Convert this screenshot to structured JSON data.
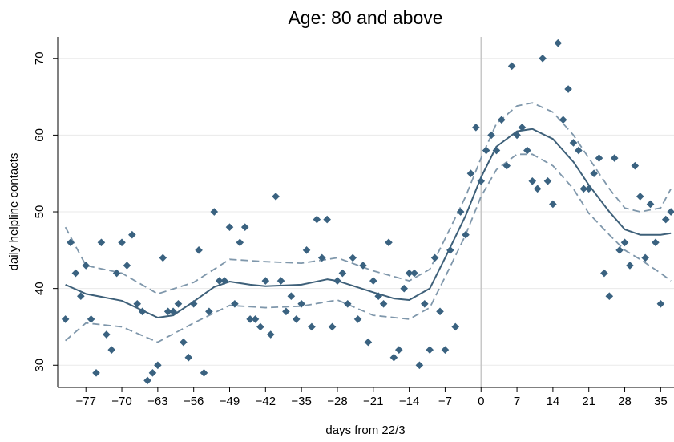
{
  "chart_data": {
    "type": "scatter",
    "title": "Age: 80 and above",
    "x_label": "days from 22/3",
    "y_label": "daily helpline contacts",
    "xlim": [
      -82.5,
      37.6
    ],
    "ylim": [
      27.1,
      72.8
    ],
    "xticks": [
      {
        "value": -77,
        "label": "−77"
      },
      {
        "value": -70,
        "label": "−70"
      },
      {
        "value": -63,
        "label": "−63"
      },
      {
        "value": -56,
        "label": "−56"
      },
      {
        "value": -49,
        "label": "−49"
      },
      {
        "value": -42,
        "label": "−42"
      },
      {
        "value": -35,
        "label": "−35"
      },
      {
        "value": -28,
        "label": "−28"
      },
      {
        "value": -21,
        "label": "−21"
      },
      {
        "value": -14,
        "label": "−14"
      },
      {
        "value": -7,
        "label": "−7"
      },
      0,
      7,
      14,
      21,
      28,
      35
    ],
    "yticks": [
      30,
      40,
      50,
      60,
      70
    ],
    "grid": true,
    "vline": 0,
    "series": [
      {
        "mode": "markers",
        "color": "#3a6280",
        "x": [
          -81,
          -80,
          -79,
          -78,
          -77,
          -76,
          -75,
          -74,
          -73,
          -72,
          -71,
          -70,
          -69,
          -68,
          -67,
          -66,
          -65,
          -64,
          -63,
          -62,
          -61,
          -60,
          -59,
          -58,
          -57,
          -56,
          -55,
          -54,
          -53,
          -52,
          -51,
          -50,
          -49,
          -48,
          -47,
          -46,
          -45,
          -44,
          -43,
          -42,
          -41,
          -40,
          -39,
          -38,
          -37,
          -36,
          -35,
          -34,
          -33,
          -32,
          -31,
          -30,
          -29,
          -28,
          -27,
          -26,
          -25,
          -24,
          -23,
          -22,
          -21,
          -20,
          -19,
          -18,
          -17,
          -16,
          -15,
          -14,
          -13,
          -12,
          -11,
          -10,
          -9,
          -8,
          -7,
          -6,
          -5,
          -4,
          -3,
          -2,
          -1,
          0,
          1,
          2,
          3,
          4,
          5,
          6,
          7,
          8,
          9,
          10,
          11,
          12,
          13,
          14,
          15,
          16,
          17,
          18,
          19,
          20,
          21,
          22,
          23,
          24,
          25,
          26,
          27,
          28,
          29,
          30,
          31,
          32,
          33,
          34,
          35,
          36,
          37
        ],
        "values": [
          36,
          46,
          42,
          39,
          43,
          36,
          29,
          46,
          34,
          32,
          42,
          46,
          43,
          47,
          38,
          37,
          28,
          29,
          30,
          44,
          37,
          37,
          38,
          33,
          31,
          38,
          45,
          29,
          37,
          50,
          41,
          41,
          48,
          38,
          46,
          48,
          36,
          36,
          35,
          41,
          34,
          52,
          41,
          37,
          39,
          36,
          38,
          45,
          35,
          49,
          44,
          49,
          35,
          41,
          42,
          38,
          44,
          36,
          43,
          33,
          41,
          39,
          38,
          46,
          31,
          32,
          40,
          42,
          42,
          30,
          38,
          32,
          44,
          37,
          32,
          45,
          35,
          50,
          47,
          55,
          61,
          54,
          58,
          60,
          58,
          62,
          56,
          69,
          60,
          61,
          58,
          54,
          53,
          70,
          54,
          51,
          72,
          62,
          66,
          59,
          58,
          53,
          53,
          55,
          57,
          42,
          39,
          57,
          45,
          46,
          43,
          56,
          52,
          44,
          51,
          46,
          38,
          49,
          50
        ]
      },
      {
        "mode": "line",
        "color": "#3e6079",
        "x": [
          -81,
          -77,
          -70,
          -63,
          -60,
          -56,
          -52,
          -49,
          -45,
          -42,
          -35,
          -30,
          -28,
          -21,
          -17,
          -14,
          -10,
          -7,
          -3,
          0,
          3,
          7,
          10,
          14,
          18,
          21,
          25,
          28,
          31,
          35,
          37
        ],
        "values": [
          40.5,
          39.3,
          38.4,
          36.2,
          36.5,
          38.3,
          40.2,
          40.9,
          40.5,
          40.3,
          40.5,
          41.2,
          41,
          39.5,
          38.7,
          38.5,
          40,
          44,
          49.5,
          54.5,
          58.5,
          60.5,
          60.8,
          59.5,
          56.5,
          53.5,
          50,
          47.7,
          47,
          47,
          47.2
        ]
      },
      {
        "mode": "dashed",
        "color": "#7f97ab",
        "x": [
          -81,
          -77,
          -70,
          -63,
          -56,
          -49,
          -42,
          -35,
          -28,
          -21,
          -14,
          -10,
          -7,
          -3,
          0,
          3,
          7,
          10,
          14,
          18,
          21,
          25,
          28,
          31,
          35,
          37
        ],
        "values": [
          48,
          43,
          42,
          39.3,
          40.8,
          43.8,
          43.5,
          43.3,
          44,
          42.3,
          41,
          42.5,
          46.5,
          52,
          57,
          61.5,
          63.8,
          64.2,
          63,
          60,
          57,
          53,
          50.5,
          50,
          50.5,
          53
        ]
      },
      {
        "mode": "dashed",
        "color": "#7f97ab",
        "x": [
          -81,
          -77,
          -70,
          -63,
          -56,
          -49,
          -42,
          -35,
          -28,
          -21,
          -14,
          -10,
          -7,
          -3,
          0,
          3,
          7,
          10,
          14,
          18,
          21,
          25,
          28,
          31,
          35,
          37
        ],
        "values": [
          33.2,
          35.5,
          35,
          33,
          35.5,
          37.8,
          37.5,
          37.7,
          38.5,
          36.5,
          36,
          37.5,
          41.5,
          47,
          52,
          55.5,
          57.5,
          57.5,
          56,
          53,
          49.8,
          47,
          45,
          43.8,
          42,
          41
        ]
      }
    ]
  }
}
